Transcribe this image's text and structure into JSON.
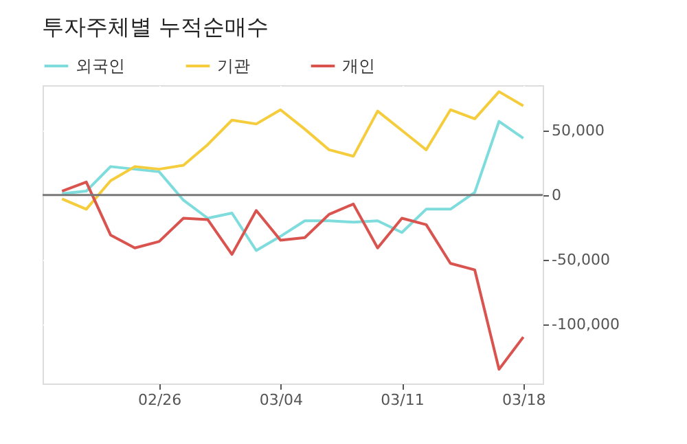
{
  "chart_data": {
    "type": "line",
    "title": "투자주체별 누적순매수",
    "categories": [
      null,
      null,
      null,
      null,
      "02/26",
      null,
      null,
      null,
      null,
      "03/04",
      null,
      null,
      null,
      null,
      "03/11",
      null,
      null,
      null,
      null,
      "03/18"
    ],
    "series": [
      {
        "name": "외국인",
        "color": "#7fdcdc",
        "values": [
          1000,
          3000,
          22000,
          20000,
          18000,
          -4000,
          -18000,
          -14000,
          -43000,
          -32000,
          -20000,
          -20000,
          -21000,
          -20000,
          -29000,
          -11000,
          -11000,
          2000,
          57000,
          44000
        ]
      },
      {
        "name": "기관",
        "color": "#f5cd3c",
        "values": [
          -3000,
          -11000,
          11000,
          22000,
          20000,
          23000,
          39000,
          58000,
          55000,
          66000,
          51000,
          35000,
          30000,
          65000,
          50000,
          35000,
          66000,
          59000,
          80000,
          69000
        ]
      },
      {
        "name": "개인",
        "color": "#d9534f",
        "values": [
          3000,
          10000,
          -31000,
          -41000,
          -36000,
          -18000,
          -19000,
          -46000,
          -12000,
          -35000,
          -33000,
          -15000,
          -7000,
          -41000,
          -18000,
          -23000,
          -53000,
          -58000,
          -135000,
          -110000
        ]
      }
    ],
    "ylim": [
      -146000,
      85000
    ],
    "yticks": [
      {
        "value": -100000,
        "label": "-100,000"
      },
      {
        "value": -50000,
        "label": "-50,000"
      },
      0,
      {
        "value": 50000,
        "label": "50,000"
      }
    ],
    "ref_lines": [
      {
        "axis": "y",
        "value": 0,
        "color": "#777777"
      }
    ],
    "grid": true,
    "legend": "top left",
    "line_style": "solid",
    "marker": "none"
  }
}
